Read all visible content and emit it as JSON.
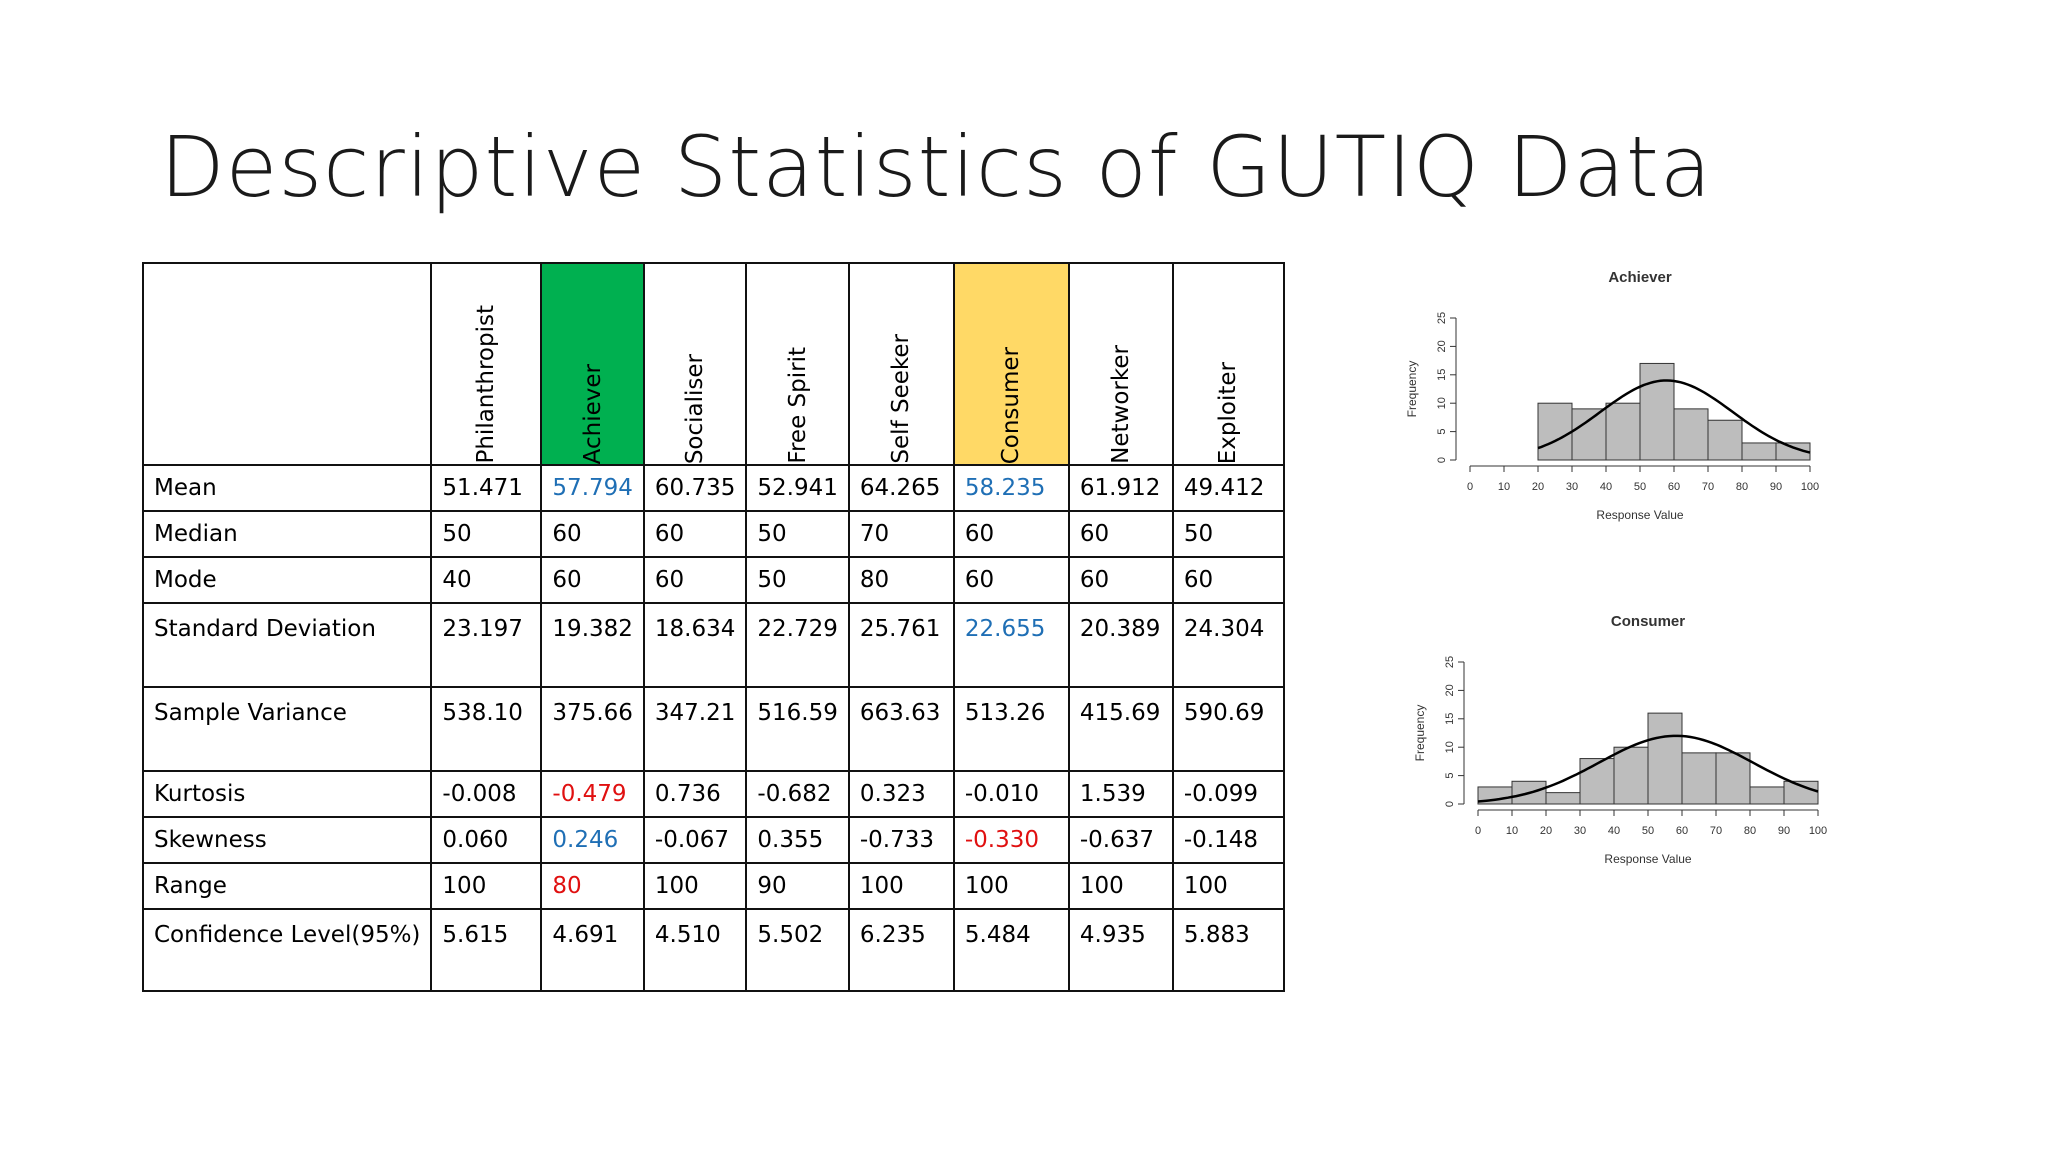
{
  "slide": {
    "title": "Descriptive Statistics of GUTIQ Data"
  },
  "table": {
    "columns": [
      "Philanthropist",
      "Achiever",
      "Socialiser",
      "Free Spirit",
      "Self Seeker",
      "Consumer",
      "Networker",
      "Exploiter"
    ],
    "highlight_colors": {
      "Achiever": "#00b050",
      "Consumer": "#ffd966"
    },
    "rows": [
      {
        "label": "Mean",
        "values": [
          "51.471",
          "57.794",
          "60.735",
          "52.941",
          "64.265",
          "58.235",
          "61.912",
          "49.412"
        ],
        "colors": [
          "",
          "blue",
          "",
          "",
          "",
          "blue",
          "",
          ""
        ]
      },
      {
        "label": "Median",
        "values": [
          "50",
          "60",
          "60",
          "50",
          "70",
          "60",
          "60",
          "50"
        ],
        "colors": [
          "",
          "",
          "",
          "",
          "",
          "",
          "",
          ""
        ]
      },
      {
        "label": "Mode",
        "values": [
          "40",
          "60",
          "60",
          "50",
          "80",
          "60",
          "60",
          "60"
        ],
        "colors": [
          "",
          "",
          "",
          "",
          "",
          "",
          "",
          ""
        ]
      },
      {
        "label": "Standard Deviation",
        "values": [
          "23.197",
          "19.382",
          "18.634",
          "22.729",
          "25.761",
          "22.655",
          "20.389",
          "24.304"
        ],
        "colors": [
          "",
          "",
          "",
          "",
          "",
          "blue",
          "",
          ""
        ]
      },
      {
        "label": "Sample Variance",
        "values": [
          "538.10",
          "375.66",
          "347.21",
          "516.59",
          "663.63",
          "513.26",
          "415.69",
          "590.69"
        ],
        "colors": [
          "",
          "",
          "",
          "",
          "",
          "",
          "",
          ""
        ]
      },
      {
        "label": "Kurtosis",
        "values": [
          "-0.008",
          "-0.479",
          "0.736",
          "-0.682",
          "0.323",
          "-0.010",
          "1.539",
          "-0.099"
        ],
        "colors": [
          "",
          "red",
          "",
          "",
          "",
          "",
          "",
          ""
        ]
      },
      {
        "label": "Skewness",
        "values": [
          "0.060",
          "0.246",
          "-0.067",
          "0.355",
          "-0.733",
          "-0.330",
          "-0.637",
          "-0.148"
        ],
        "colors": [
          "",
          "blue",
          "",
          "",
          "",
          "red",
          "",
          ""
        ]
      },
      {
        "label": "Range",
        "values": [
          "100",
          "80",
          "100",
          "90",
          "100",
          "100",
          "100",
          "100"
        ],
        "colors": [
          "",
          "red",
          "",
          "",
          "",
          "",
          "",
          ""
        ]
      },
      {
        "label": "Confidence Level(95%)",
        "values": [
          "5.615",
          "4.691",
          "4.510",
          "5.502",
          "6.235",
          "5.484",
          "4.935",
          "5.883"
        ],
        "colors": [
          "",
          "",
          "",
          "",
          "",
          "",
          "",
          ""
        ]
      }
    ]
  },
  "chart_data": [
    {
      "type": "bar",
      "title": "Achiever",
      "xlabel": "Response Value",
      "ylabel": "Frequency",
      "xlim": [
        0,
        100
      ],
      "ylim": [
        0,
        25
      ],
      "x_ticks": [
        0,
        10,
        20,
        30,
        40,
        50,
        60,
        70,
        80,
        90,
        100
      ],
      "y_ticks": [
        0,
        5,
        10,
        15,
        20,
        25
      ],
      "bins": [
        [
          20,
          30
        ],
        [
          30,
          40
        ],
        [
          40,
          50
        ],
        [
          50,
          60
        ],
        [
          60,
          70
        ],
        [
          70,
          80
        ],
        [
          80,
          90
        ],
        [
          90,
          100
        ]
      ],
      "values": [
        10,
        9,
        10,
        17,
        9,
        7,
        3,
        3
      ],
      "normal_curve": {
        "mean": 57.794,
        "sd": 19.382,
        "peak": 14
      }
    },
    {
      "type": "bar",
      "title": "Consumer",
      "xlabel": "Response Value",
      "ylabel": "Frequency",
      "xlim": [
        0,
        100
      ],
      "ylim": [
        0,
        25
      ],
      "x_ticks": [
        0,
        10,
        20,
        30,
        40,
        50,
        60,
        70,
        80,
        90,
        100
      ],
      "y_ticks": [
        0,
        5,
        10,
        15,
        20,
        25
      ],
      "bins": [
        [
          0,
          10
        ],
        [
          10,
          20
        ],
        [
          20,
          30
        ],
        [
          30,
          40
        ],
        [
          40,
          50
        ],
        [
          50,
          60
        ],
        [
          60,
          70
        ],
        [
          70,
          80
        ],
        [
          80,
          90
        ],
        [
          90,
          100
        ]
      ],
      "values": [
        3,
        4,
        2,
        8,
        10,
        16,
        9,
        9,
        3,
        4
      ],
      "normal_curve": {
        "mean": 58.235,
        "sd": 22.655,
        "peak": 12
      }
    }
  ]
}
